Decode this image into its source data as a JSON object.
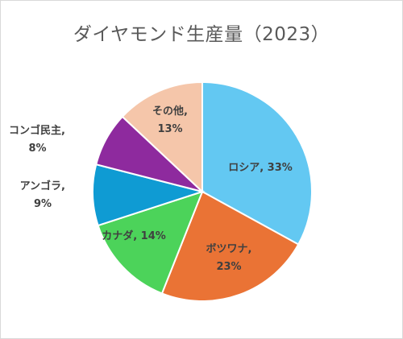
{
  "chart_data": {
    "type": "pie",
    "title": "ダイヤモンド生産量（2023）",
    "slices": [
      {
        "label": "ロシア",
        "value": 33,
        "value_label": "33%",
        "color": "#63c8f2"
      },
      {
        "label": "ボツワナ",
        "value": 23,
        "value_label": "23%",
        "color": "#ea7335"
      },
      {
        "label": "カナダ",
        "value": 14,
        "value_label": "14%",
        "color": "#4cd35a"
      },
      {
        "label": "アンゴラ",
        "value": 9,
        "value_label": "9%",
        "color": "#0f9bd3"
      },
      {
        "label": "コンゴ民主",
        "value": 8,
        "value_label": "8%",
        "color": "#8e2a9e"
      },
      {
        "label": "その他",
        "value": 13,
        "value_label": "13%",
        "color": "#f5c6aa"
      }
    ],
    "start_angle_deg": 0,
    "direction": "clockwise",
    "legend": "none",
    "data_labels": "category name, percentage"
  }
}
